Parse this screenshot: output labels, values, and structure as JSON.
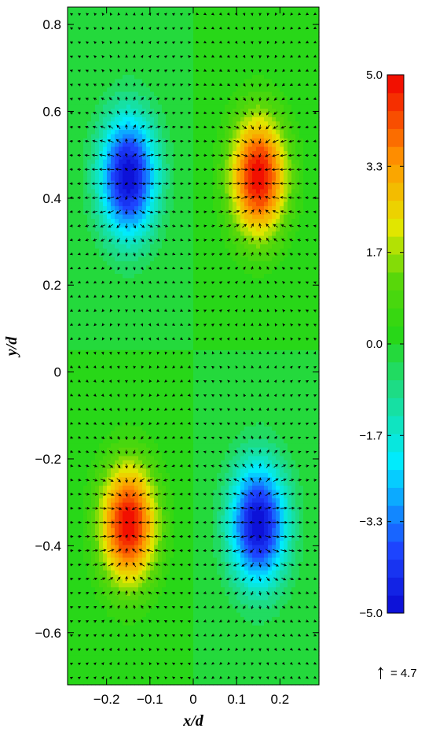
{
  "chart_data": {
    "type": "heatmap",
    "title": "",
    "xlabel": "x/d",
    "ylabel": "y/d",
    "xlim": [
      -0.29,
      0.29
    ],
    "ylim": [
      -0.72,
      0.84
    ],
    "x_ticks": [
      -0.2,
      -0.1,
      0,
      0.1,
      0.2
    ],
    "x_tick_labels": [
      "−0.2",
      "−0.1",
      "0",
      "0.1",
      "0.2"
    ],
    "y_ticks": [
      0.8,
      0.6,
      0.4,
      0.2,
      0,
      -0.2,
      -0.4,
      -0.6
    ],
    "y_tick_labels": [
      "0.8",
      "0.6",
      "0.4",
      "0.2",
      "0",
      "−0.2",
      "−0.4",
      "−0.6"
    ],
    "colorbar": {
      "range": [
        -5.0,
        5.0
      ],
      "ticks": [
        5.0,
        3.3,
        1.7,
        0.0,
        -1.7,
        -3.3,
        -5.0
      ],
      "tick_labels": [
        "5.0",
        "3.3",
        "1.7",
        "0.0",
        "−1.7",
        "−3.3",
        "−5.0"
      ],
      "colormap": "rainbow (blue = low, red = high)",
      "levels": 30
    },
    "extrema": [
      {
        "x": -0.15,
        "y": 0.45,
        "value": -5.0
      },
      {
        "x": 0.15,
        "y": 0.45,
        "value": 5.0
      },
      {
        "x": -0.15,
        "y": -0.35,
        "value": 5.0
      },
      {
        "x": 0.15,
        "y": -0.35,
        "value": -5.0
      }
    ],
    "vector_field": {
      "grid": "32 columns x 48 rows spanning the plot area",
      "color": "#000000"
    },
    "vector_key": {
      "symbol": "↑",
      "text": "= 4.7"
    },
    "grid": false
  }
}
